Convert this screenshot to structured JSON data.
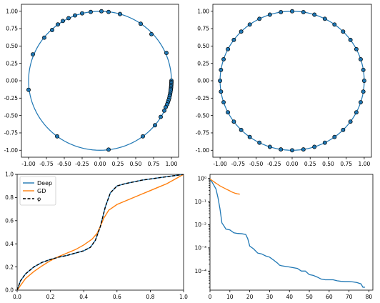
{
  "chart_data": [
    {
      "type": "scatter",
      "title": "",
      "xlabel": "",
      "ylabel": "",
      "xlim": [
        -1.1,
        1.1
      ],
      "ylim": [
        -1.1,
        1.1
      ],
      "xticks": [
        "-1.00",
        "-0.75",
        "-0.50",
        "-0.25",
        "0.00",
        "0.25",
        "0.50",
        "0.75",
        "1.00"
      ],
      "yticks": [
        "-1.00",
        "-0.75",
        "-0.50",
        "-0.25",
        "0.00",
        "0.25",
        "0.50",
        "0.75",
        "1.00"
      ],
      "curve": "unit circle",
      "points": [
        [
          1.0,
          0.0
        ],
        [
          1.0,
          -0.02
        ],
        [
          0.999,
          -0.04
        ],
        [
          0.998,
          -0.06
        ],
        [
          0.996,
          -0.08
        ],
        [
          0.995,
          -0.1
        ],
        [
          0.992,
          -0.12
        ],
        [
          0.99,
          -0.14
        ],
        [
          0.985,
          -0.17
        ],
        [
          0.98,
          -0.2
        ],
        [
          0.975,
          -0.22
        ],
        [
          0.97,
          -0.25
        ],
        [
          0.96,
          -0.28
        ],
        [
          0.95,
          -0.31
        ],
        [
          0.94,
          -0.34
        ],
        [
          0.92,
          -0.38
        ],
        [
          0.9,
          -0.43
        ],
        [
          0.85,
          -0.52
        ],
        [
          0.77,
          -0.64
        ],
        [
          0.6,
          -0.8
        ],
        [
          0.12,
          -0.99
        ],
        [
          -0.6,
          -0.8
        ],
        [
          -1.0,
          -0.13
        ],
        [
          -0.94,
          0.38
        ],
        [
          -0.78,
          0.62
        ],
        [
          -0.67,
          0.73
        ],
        [
          -0.59,
          0.81
        ],
        [
          -0.52,
          0.86
        ],
        [
          -0.44,
          0.9
        ],
        [
          -0.35,
          0.94
        ],
        [
          -0.25,
          0.97
        ],
        [
          -0.13,
          0.99
        ],
        [
          0.02,
          1.0
        ],
        [
          0.12,
          0.99
        ],
        [
          0.28,
          0.96
        ],
        [
          0.57,
          0.82
        ],
        [
          0.72,
          0.67
        ],
        [
          0.93,
          0.4
        ]
      ]
    },
    {
      "type": "scatter",
      "title": "",
      "xlabel": "",
      "ylabel": "",
      "xlim": [
        -1.1,
        1.1
      ],
      "ylim": [
        -1.1,
        1.1
      ],
      "xticks": [
        "-1.00",
        "-0.75",
        "-0.50",
        "-0.25",
        "0.00",
        "0.25",
        "0.50",
        "0.75",
        "1.00"
      ],
      "yticks": [
        "-1.00",
        "-0.75",
        "-0.50",
        "-0.25",
        "0.00",
        "0.25",
        "0.50",
        "0.75",
        "1.00"
      ],
      "curve": "unit circle",
      "points_count": 40,
      "points": "40 evenly spaced points on the unit circle"
    },
    {
      "type": "line",
      "title": "",
      "xlabel": "",
      "ylabel": "",
      "xlim": [
        0,
        1
      ],
      "ylim": [
        0,
        1
      ],
      "xticks": [
        "0.0",
        "0.2",
        "0.4",
        "0.6",
        "0.8",
        "1.0"
      ],
      "yticks": [
        "0.0",
        "0.2",
        "0.4",
        "0.6",
        "0.8",
        "1.0"
      ],
      "legend_position": "top-left",
      "series": [
        {
          "name": "Deep",
          "color": "#1f77b4",
          "style": "solid",
          "x": [
            0,
            0.02,
            0.05,
            0.1,
            0.15,
            0.2,
            0.25,
            0.3,
            0.35,
            0.4,
            0.44,
            0.47,
            0.5,
            0.53,
            0.56,
            0.6,
            0.65,
            0.7,
            0.75,
            0.8,
            0.85,
            0.9,
            0.95,
            1.0
          ],
          "y": [
            0,
            0.08,
            0.14,
            0.2,
            0.24,
            0.265,
            0.285,
            0.3,
            0.32,
            0.34,
            0.37,
            0.43,
            0.55,
            0.72,
            0.84,
            0.9,
            0.92,
            0.935,
            0.95,
            0.96,
            0.97,
            0.98,
            0.99,
            1.0
          ]
        },
        {
          "name": "GD",
          "color": "#ff7f0e",
          "style": "solid",
          "x": [
            0,
            0.05,
            0.1,
            0.15,
            0.2,
            0.25,
            0.3,
            0.35,
            0.4,
            0.45,
            0.48,
            0.5,
            0.52,
            0.55,
            0.6,
            0.65,
            0.7,
            0.75,
            0.8,
            0.85,
            0.9,
            0.95,
            1.0
          ],
          "y": [
            0,
            0.1,
            0.16,
            0.21,
            0.255,
            0.29,
            0.32,
            0.35,
            0.39,
            0.44,
            0.49,
            0.55,
            0.62,
            0.69,
            0.74,
            0.77,
            0.8,
            0.83,
            0.86,
            0.89,
            0.92,
            0.96,
            1.0
          ]
        },
        {
          "name": "φ",
          "color": "#000000",
          "style": "dashed",
          "x": [
            0,
            0.02,
            0.05,
            0.1,
            0.15,
            0.2,
            0.25,
            0.3,
            0.35,
            0.4,
            0.44,
            0.47,
            0.5,
            0.53,
            0.56,
            0.6,
            0.65,
            0.7,
            0.75,
            0.8,
            0.85,
            0.9,
            0.95,
            1.0
          ],
          "y": [
            0,
            0.08,
            0.14,
            0.2,
            0.24,
            0.265,
            0.285,
            0.3,
            0.32,
            0.34,
            0.37,
            0.43,
            0.55,
            0.72,
            0.84,
            0.9,
            0.92,
            0.935,
            0.95,
            0.96,
            0.97,
            0.98,
            0.99,
            1.0
          ]
        }
      ]
    },
    {
      "type": "line",
      "title": "",
      "xlabel": "",
      "ylabel": "",
      "xlim": [
        0,
        82
      ],
      "ylim": [
        1.5e-05,
        1.5
      ],
      "yscale": "log",
      "xticks": [
        "0",
        "10",
        "20",
        "30",
        "40",
        "50",
        "60",
        "70",
        "80"
      ],
      "yticks": [
        "10⁻⁴",
        "10⁻³",
        "10⁻²",
        "10⁻¹",
        "10⁰"
      ],
      "series": [
        {
          "color": "#1f77b4",
          "x": [
            0,
            1,
            2,
            3,
            4,
            5,
            6,
            7,
            8,
            10,
            12,
            14,
            16,
            18,
            19,
            20,
            22,
            24,
            26,
            28,
            30,
            32,
            34,
            35,
            36,
            40,
            44,
            46,
            48,
            50,
            52,
            54,
            56,
            58,
            60,
            62,
            64,
            66,
            68,
            70,
            72,
            74,
            76,
            77,
            78
          ],
          "y": [
            0.9,
            0.7,
            0.5,
            0.35,
            0.15,
            0.05,
            0.012,
            0.009,
            0.0065,
            0.006,
            0.0045,
            0.0042,
            0.0041,
            0.0038,
            0.0025,
            0.0012,
            0.0009,
            0.0006,
            0.00055,
            0.00045,
            0.0004,
            0.0003,
            0.00022,
            0.00018,
            0.00017,
            0.00015,
            0.00013,
            0.0001,
            0.0001,
            7e-05,
            6.5e-05,
            5.5e-05,
            4.5e-05,
            4.2e-05,
            4.2e-05,
            4.2e-05,
            3.8e-05,
            3.6e-05,
            3.5e-05,
            3.5e-05,
            3.4e-05,
            3.2e-05,
            2.8e-05,
            2e-05,
            2e-05
          ]
        },
        {
          "color": "#ff7f0e",
          "x": [
            0,
            1,
            2,
            3,
            4,
            5,
            6,
            7,
            8,
            9,
            10,
            11,
            12,
            13,
            14,
            15
          ],
          "y": [
            0.95,
            0.82,
            0.72,
            0.62,
            0.55,
            0.48,
            0.43,
            0.39,
            0.35,
            0.32,
            0.29,
            0.26,
            0.24,
            0.225,
            0.215,
            0.21
          ]
        }
      ]
    }
  ]
}
